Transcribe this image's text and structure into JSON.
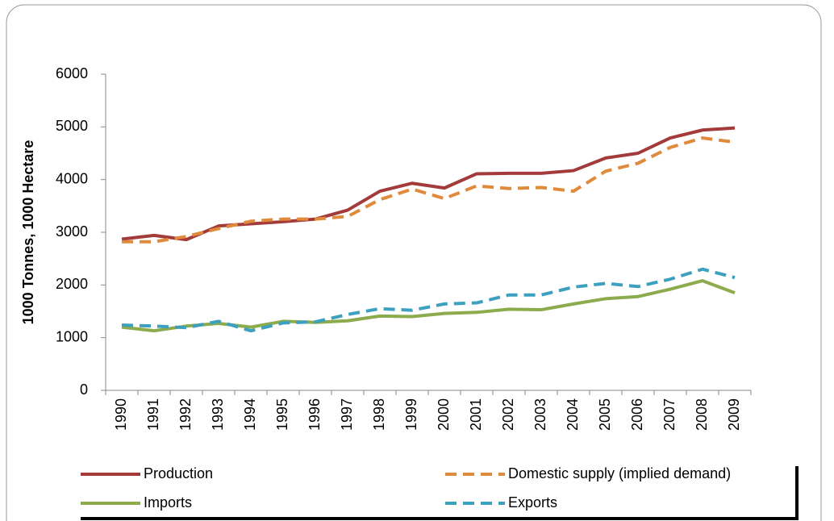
{
  "chart_data": {
    "type": "line",
    "y_label": "1000 Tonnes, 1000 Hectare",
    "categories": [
      "1990",
      "1991",
      "1992",
      "1993",
      "1994",
      "1995",
      "1996",
      "1997",
      "1998",
      "1999",
      "2000",
      "2001",
      "2002",
      "2003",
      "2004",
      "2005",
      "2006",
      "2007",
      "2008",
      "2009"
    ],
    "series": [
      {
        "name": "Production",
        "color": "#a33b3a",
        "style": "solid",
        "values": [
          2870,
          2940,
          2860,
          3120,
          3160,
          3200,
          3250,
          3420,
          3780,
          3930,
          3840,
          4110,
          4120,
          4120,
          4170,
          4410,
          4500,
          4790,
          4940,
          4980
        ]
      },
      {
        "name": "Domestic supply (implied demand)",
        "color": "#e08a3c",
        "style": "dashed",
        "values": [
          2820,
          2820,
          2920,
          3070,
          3210,
          3250,
          3250,
          3300,
          3620,
          3820,
          3640,
          3880,
          3830,
          3850,
          3780,
          4160,
          4310,
          4610,
          4790,
          4710
        ]
      },
      {
        "name": "Imports",
        "color": "#8cab4c",
        "style": "solid",
        "values": [
          1200,
          1130,
          1220,
          1270,
          1200,
          1310,
          1290,
          1320,
          1410,
          1400,
          1460,
          1480,
          1540,
          1530,
          1640,
          1740,
          1780,
          1920,
          2080,
          1850
        ]
      },
      {
        "name": "Exports",
        "color": "#3ea0bf",
        "style": "dashed",
        "values": [
          1240,
          1220,
          1190,
          1310,
          1130,
          1280,
          1300,
          1440,
          1550,
          1520,
          1640,
          1660,
          1810,
          1810,
          1960,
          2030,
          1970,
          2110,
          2300,
          2140
        ]
      }
    ],
    "ylim": [
      0,
      6000
    ],
    "yticks": [
      0,
      1000,
      2000,
      3000,
      4000,
      5000,
      6000
    ],
    "grid": false
  }
}
